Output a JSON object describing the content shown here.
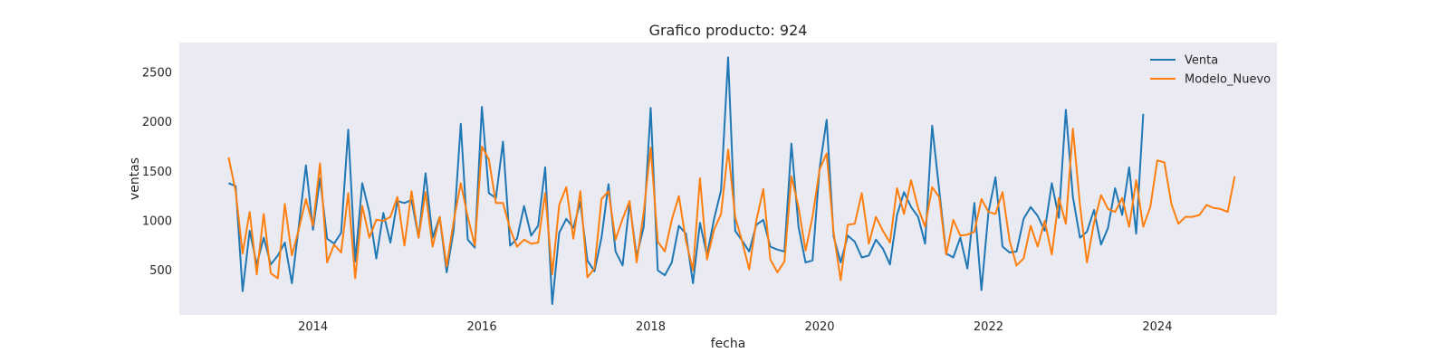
{
  "chart_data": {
    "type": "line",
    "title": "Grafico producto: 924",
    "xlabel": "fecha",
    "ylabel": "ventas",
    "xlim": [
      "2012-06",
      "2025-06"
    ],
    "ylim": [
      50,
      2800
    ],
    "x_ticks": [
      "2014",
      "2016",
      "2018",
      "2020",
      "2022",
      "2024"
    ],
    "y_ticks": [
      500,
      1000,
      1500,
      2000,
      2500
    ],
    "grid": false,
    "legend": "top-right",
    "colors": {
      "background": "#eaeaf2",
      "Venta": "#1f77b4",
      "Modelo_Nuevo": "#ff7f0e"
    },
    "series": [
      {
        "name": "Venta",
        "start": "2013-01",
        "values": [
          1380,
          1350,
          290,
          900,
          560,
          830,
          560,
          650,
          780,
          370,
          960,
          1560,
          910,
          1430,
          820,
          770,
          880,
          1920,
          590,
          1380,
          1090,
          620,
          1080,
          780,
          1200,
          1180,
          1210,
          830,
          1480,
          830,
          1040,
          480,
          910,
          1980,
          810,
          730,
          2150,
          1280,
          1230,
          1800,
          750,
          820,
          1150,
          850,
          950,
          1540,
          160,
          880,
          1020,
          930,
          1190,
          600,
          490,
          830,
          1370,
          690,
          550,
          1180,
          640,
          940,
          2140,
          500,
          450,
          580,
          950,
          870,
          370,
          980,
          650,
          1020,
          1310,
          2650,
          900,
          800,
          690,
          960,
          1010,
          740,
          710,
          690,
          1780,
          940,
          580,
          600,
          1530,
          2020,
          840,
          580,
          850,
          790,
          630,
          650,
          810,
          720,
          560,
          1060,
          1290,
          1140,
          1040,
          770,
          1960,
          1310,
          670,
          630,
          830,
          520,
          1180,
          300,
          1090,
          1440,
          740,
          680,
          690,
          1020,
          1140,
          1050,
          900,
          1380,
          1030,
          2120,
          1240,
          830,
          890,
          1110,
          760,
          930,
          1330,
          1060,
          1540,
          870,
          2080
        ]
      },
      {
        "name": "Modelo_Nuevo",
        "start": "2013-01",
        "values": [
          1640,
          1300,
          670,
          1090,
          460,
          1070,
          470,
          420,
          1170,
          650,
          920,
          1220,
          950,
          1580,
          580,
          760,
          680,
          1280,
          420,
          1150,
          830,
          1010,
          1000,
          1040,
          1240,
          750,
          1300,
          830,
          1290,
          740,
          1040,
          540,
          1000,
          1380,
          1040,
          750,
          1750,
          1620,
          1180,
          1180,
          920,
          740,
          810,
          770,
          780,
          1280,
          460,
          1160,
          1340,
          820,
          1300,
          430,
          520,
          1220,
          1300,
          810,
          1020,
          1200,
          580,
          1090,
          1740,
          790,
          690,
          1010,
          1250,
          800,
          500,
          1430,
          610,
          910,
          1070,
          1720,
          1040,
          790,
          510,
          1000,
          1320,
          610,
          480,
          590,
          1450,
          1140,
          700,
          1040,
          1520,
          1680,
          880,
          400,
          960,
          970,
          1280,
          770,
          1040,
          900,
          780,
          1330,
          1070,
          1410,
          1130,
          940,
          1340,
          1240,
          660,
          1010,
          850,
          860,
          890,
          1220,
          1090,
          1070,
          1290,
          800,
          550,
          620,
          950,
          740,
          1000,
          660,
          1230,
          970,
          1930,
          1160,
          580,
          980,
          1260,
          1120,
          1090,
          1230,
          940,
          1410,
          940,
          1140,
          1610,
          1590,
          1170,
          970,
          1040,
          1040,
          1060,
          1160,
          1130,
          1120,
          1090,
          1450
        ]
      }
    ]
  }
}
